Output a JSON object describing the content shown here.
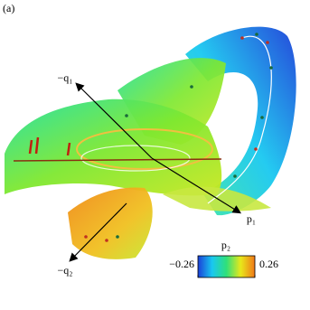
{
  "chart_data": {
    "type": "surface3d",
    "panel_label": "(a)",
    "axis_labels": {
      "q1": "−q₁",
      "p1": "p₁",
      "q2": "−q₂"
    },
    "colorbar": {
      "label": "p₂",
      "lim": [
        -0.26,
        0.26
      ],
      "ticks": [
        {
          "value": -0.26,
          "label": "−0.26"
        },
        0.26
      ],
      "colors": [
        "#1a3fd8",
        "#19c8f0",
        "#2fe07a",
        "#e8e81a",
        "#f07818"
      ]
    }
  }
}
